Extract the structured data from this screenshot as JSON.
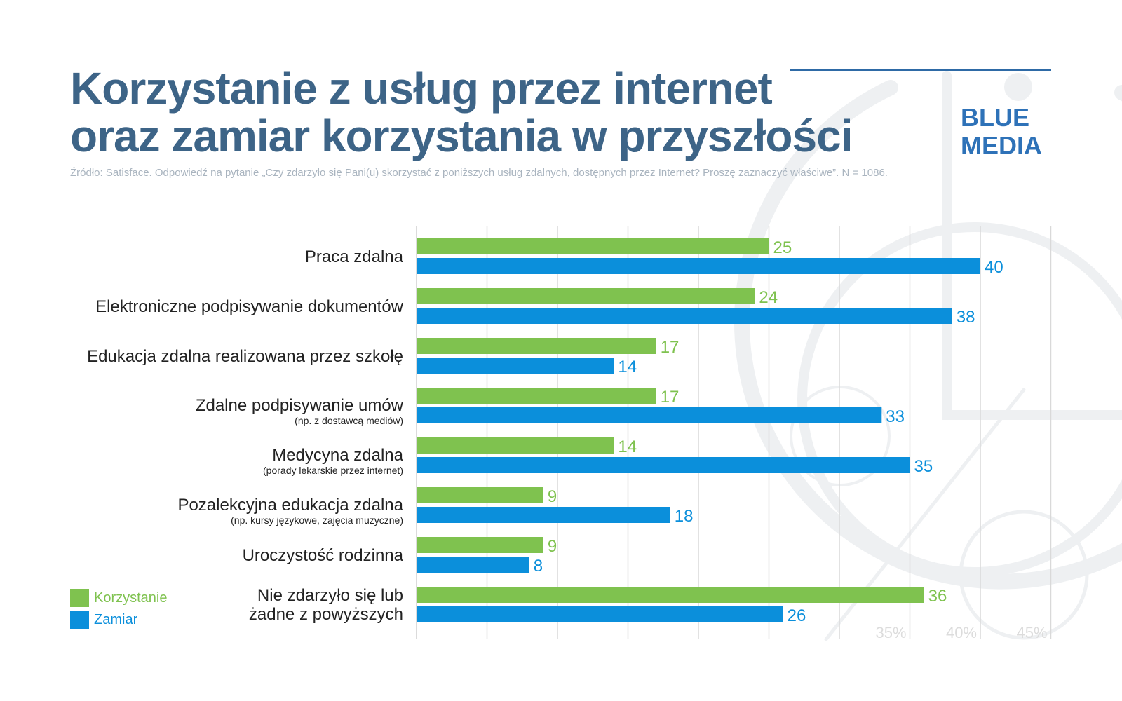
{
  "header": {
    "title_line1": "Korzystanie z usług przez internet",
    "title_line2": "oraz zamiar korzystania w przyszłości",
    "source": "Źródło: Satisface. Odpowiedź na pytanie „Czy zdarzyło się Pani(u) skorzystać z poniższych usług zdalnych, dostępnych przez Internet? Proszę zaznaczyć właściwe”. N = 1086."
  },
  "brand": {
    "line1": "BLUE",
    "line2": "MEDIA"
  },
  "colors": {
    "korzystanie": "#7fc24f",
    "zamiar": "#0b8fdb",
    "title": "#3d6487",
    "grid": "#d9d9d9"
  },
  "chart_data": {
    "type": "bar",
    "orientation": "horizontal",
    "categories": [
      {
        "label": "Praca zdalna",
        "sublabel": ""
      },
      {
        "label": "Elektroniczne podpisywanie dokumentów",
        "sublabel": ""
      },
      {
        "label": "Edukacja zdalna realizowana przez szkołę",
        "sublabel": ""
      },
      {
        "label": "Zdalne podpisywanie umów",
        "sublabel": "(np. z dostawcą mediów)"
      },
      {
        "label": "Medycyna zdalna",
        "sublabel": "(porady lekarskie przez internet)"
      },
      {
        "label": "Pozalekcyjna edukacja zdalna",
        "sublabel": "(np. kursy językowe, zajęcia muzyczne)"
      },
      {
        "label": "Uroczystość rodzinna",
        "sublabel": ""
      },
      {
        "label": "Nie zdarzyło się lub",
        "sublabel": "żadne z powyższych"
      }
    ],
    "series": [
      {
        "name": "Korzystanie",
        "values": [
          25,
          24,
          17,
          17,
          14,
          9,
          9,
          36
        ]
      },
      {
        "name": "Zamiar",
        "values": [
          40,
          38,
          14,
          33,
          35,
          18,
          8,
          26
        ]
      }
    ],
    "xlim": [
      0,
      45
    ],
    "grid": true,
    "tick_labels": [
      "35%",
      "40%",
      "45%"
    ],
    "tick_values": [
      35,
      40,
      45
    ],
    "legend_position": "bottom-left"
  }
}
